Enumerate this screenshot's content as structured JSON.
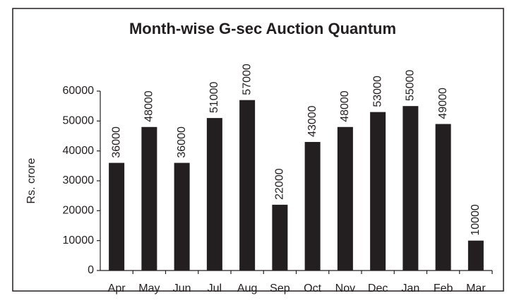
{
  "chart_data": {
    "type": "bar",
    "title": "Month-wise G-sec Auction Quantum",
    "y_label": "Rs. crore",
    "categories": [
      "Apr",
      "May",
      "Jun",
      "Jul",
      "Aug",
      "Sep",
      "Oct",
      "Nov",
      "Dec",
      "Jan",
      "Feb",
      "Mar"
    ],
    "values": [
      36000,
      48000,
      36000,
      51000,
      57000,
      22000,
      43000,
      48000,
      53000,
      55000,
      49000,
      10000
    ],
    "color": "#231f20",
    "ylim": [
      0,
      60000
    ],
    "yticks": [
      0,
      10000,
      20000,
      30000,
      40000,
      50000,
      60000
    ],
    "grid": false
  }
}
